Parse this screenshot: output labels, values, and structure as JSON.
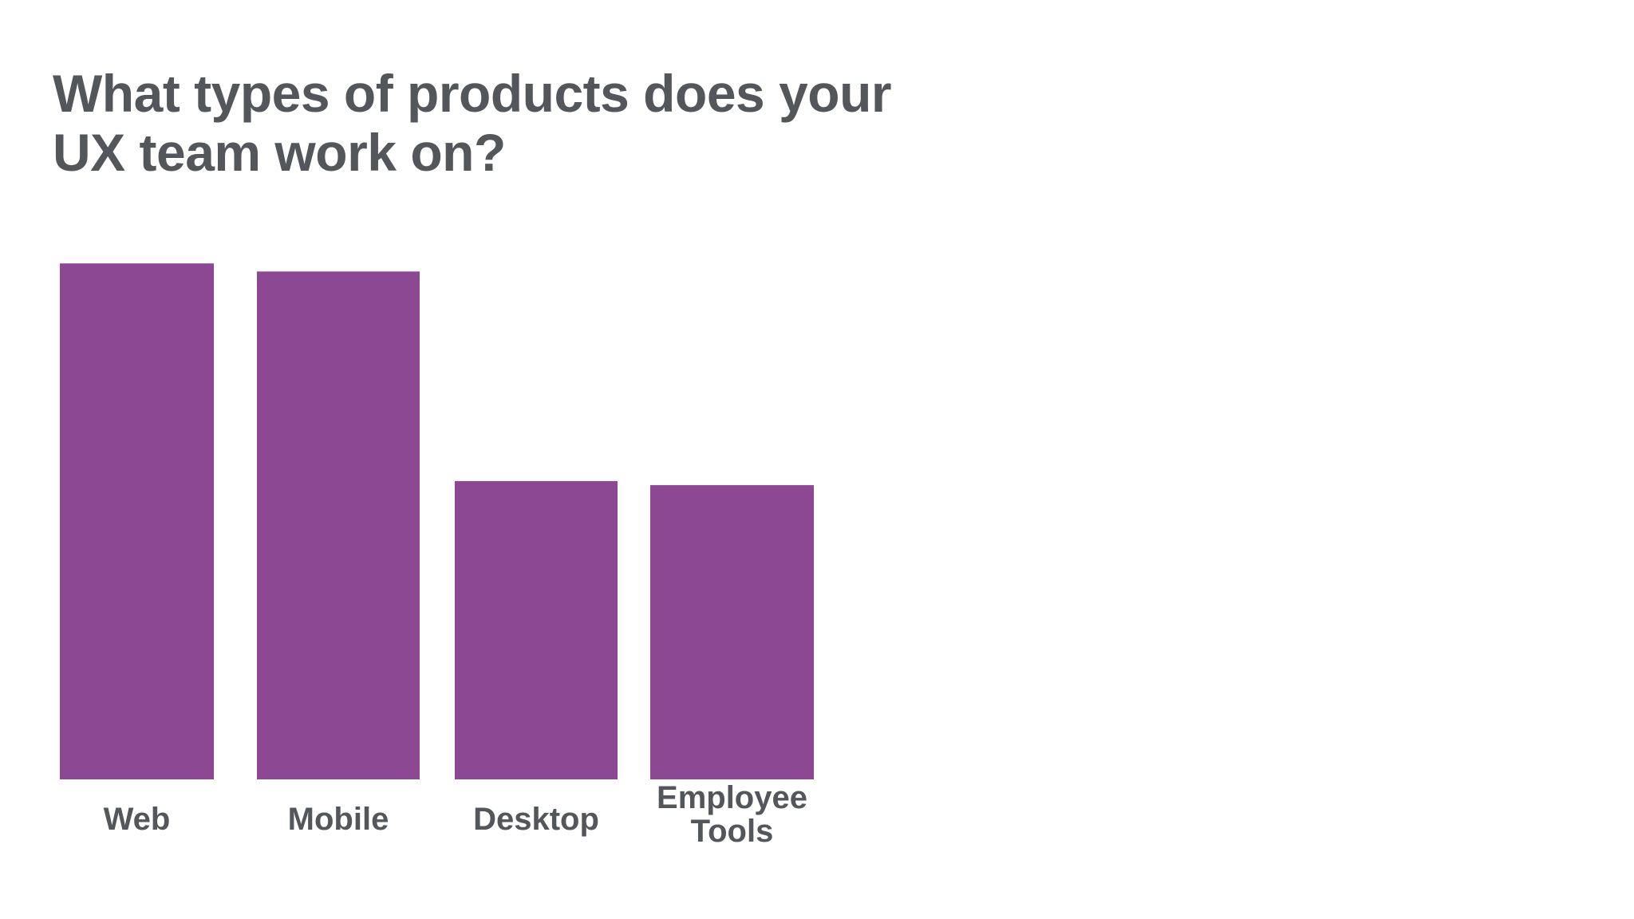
{
  "title_lines": [
    "What types of products does your",
    "UX team work on?"
  ],
  "chart_data": {
    "type": "bar",
    "title": "What types of products does your UX team work on?",
    "categories": [
      [
        "Web"
      ],
      [
        "Mobile"
      ],
      [
        "Desktop"
      ],
      [
        "Employee",
        "Tools"
      ]
    ],
    "values": [
      64,
      63,
      37,
      36.5
    ],
    "ylim": [
      0,
      66
    ],
    "grid": false,
    "legend": "none",
    "bar_color": "#8c4893",
    "label_color": "#53565b"
  }
}
